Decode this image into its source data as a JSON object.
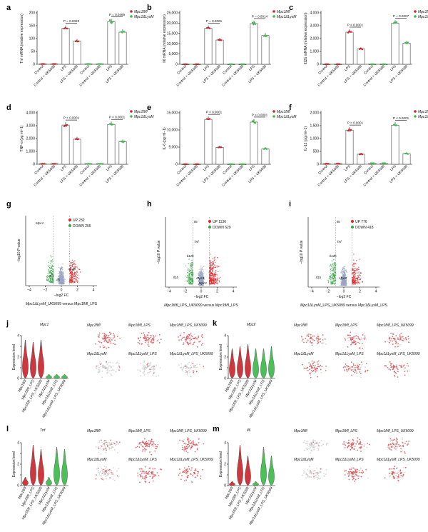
{
  "colors": {
    "fl": "#c8282d",
    "ko": "#3dbb4a",
    "gray": "#9aa0b4",
    "up": "#e0262b",
    "down": "#33a845"
  },
  "bar_groups": [
    "Control",
    "Control + UK5099",
    "LPS",
    "LPS + UK5099",
    "Control",
    "Control + UK5099",
    "LPS",
    "LPS + UK5099"
  ],
  "legend": {
    "fl": "Mpc1fl/fl",
    "ko": "Mpc1ΔLysM"
  },
  "chart_data": [
    {
      "panel": "a",
      "type": "bar",
      "ylabel": "Tnf mRNA (relative expression)",
      "yticks": [
        "0",
        "50",
        "100",
        "150",
        "200"
      ],
      "ylim": [
        0,
        200
      ],
      "series": [
        {
          "name": "Mpc1fl/fl",
          "values": [
            1,
            1,
            140,
            90
          ]
        },
        {
          "name": "Mpc1ΔLysM",
          "values": [
            1,
            1,
            165,
            125
          ]
        }
      ],
      "pvals": [
        "P = 0.0020",
        "P = 0.0465"
      ]
    },
    {
      "panel": "b",
      "type": "bar",
      "ylabel": "Il6 mRNA (relative expression)",
      "yticks": [
        "0",
        "5,000",
        "10,000",
        "15,000",
        "20,000",
        "25,000"
      ],
      "ylim": [
        0,
        25000
      ],
      "series": [
        {
          "name": "Mpc1fl/fl",
          "values": [
            10,
            10,
            17500,
            11800
          ]
        },
        {
          "name": "Mpc1ΔLysM",
          "values": [
            10,
            10,
            19800,
            14000
          ]
        }
      ],
      "pvals": [
        "P = 0.0001",
        "P = 0.0014"
      ]
    },
    {
      "panel": "c",
      "type": "bar",
      "ylabel": "Il12b mRNA (relative expression)",
      "yticks": [
        "0",
        "1,000",
        "2,000",
        "3,000",
        "4,000"
      ],
      "ylim": [
        0,
        4000
      ],
      "series": [
        {
          "name": "Mpc1fl/fl",
          "values": [
            5,
            5,
            2500,
            1200
          ]
        },
        {
          "name": "Mpc1ΔLysM",
          "values": [
            5,
            5,
            3200,
            1650
          ]
        }
      ],
      "pvals": [
        "P < 0.0001",
        "P = 0.0007"
      ]
    },
    {
      "panel": "d",
      "type": "bar",
      "ylabel": "TNF-α (pg ml−1)",
      "yticks": [
        "0",
        "1,000",
        "2,000",
        "3,000",
        "4,000"
      ],
      "ylim": [
        0,
        4000
      ],
      "series": [
        {
          "name": "Mpc1fl/fl",
          "values": [
            30,
            30,
            3050,
            1950
          ]
        },
        {
          "name": "Mpc1ΔLysM",
          "values": [
            30,
            30,
            3100,
            1750
          ]
        }
      ],
      "pvals": [
        "P < 0.0001",
        "P < 0.0001"
      ]
    },
    {
      "panel": "e",
      "type": "bar",
      "ylabel": "IL-6 (pg ml−1)",
      "yticks": [
        "0",
        "5,000",
        "10,000",
        "15,000"
      ],
      "ylim": [
        0,
        15000
      ],
      "series": [
        {
          "name": "Mpc1fl/fl",
          "values": [
            20,
            20,
            13100,
            4900
          ]
        },
        {
          "name": "Mpc1ΔLysM",
          "values": [
            20,
            20,
            12300,
            4500
          ]
        }
      ],
      "pvals": [
        "P < 0.0001",
        "P < 0.0001"
      ]
    },
    {
      "panel": "f",
      "type": "bar",
      "ylabel": "IL-12 (pg ml−1)",
      "yticks": [
        "0",
        "500",
        "1,000",
        "1,500",
        "2,000"
      ],
      "ylim": [
        0,
        2000
      ],
      "series": [
        {
          "name": "Mpc1fl/fl",
          "values": [
            20,
            20,
            1330,
            390
          ]
        },
        {
          "name": "Mpc1ΔLysM",
          "values": [
            40,
            40,
            1520,
            410
          ]
        }
      ],
      "pvals": [
        "P < 0.0001",
        "P < 0.0001"
      ]
    }
  ],
  "volcano": [
    {
      "panel": "g",
      "up": "UP 232",
      "down": "DOWN 255",
      "genes": [
        "Mpc1",
        "Il12b",
        "Tnf",
        "Il6"
      ],
      "caption_a": "Mpc1ΔLysM",
      "caption_b": "_UK5099 versus Mpc1fl/fl_LPS"
    },
    {
      "panel": "h",
      "up": "UP 1136",
      "down": "DOWN 629",
      "genes": [
        "Il6",
        "Tnf",
        "Il12b",
        "Il1b",
        "Mpc1",
        "Mpc2"
      ],
      "caption_a": "Mpc1fl/fl",
      "caption_b": "_LPS_UK5099 versus Mpc1fl/fl_LPS"
    },
    {
      "panel": "i",
      "up": "UP 776",
      "down": "DOWN 418",
      "genes": [
        "Il6",
        "Tnf",
        "Il12b",
        "Il1b",
        "Mpc2"
      ],
      "caption_a": "Mpc1ΔLysM",
      "caption_b": "_LPS_UK5099 versus Mpc1ΔLysM_LPS"
    }
  ],
  "volcano_axes": {
    "xlabel": "−log2 FC",
    "ylabel": "−log10 P value",
    "xticks": [
      "−4",
      "−2",
      "0",
      "2",
      "4"
    ]
  },
  "violin": [
    {
      "panel": "j",
      "gene": "Mpc1",
      "ymax": 4
    },
    {
      "panel": "k",
      "gene": "Mpc2",
      "ymax": 4
    },
    {
      "panel": "l",
      "gene": "Tnf",
      "ymax": 4
    },
    {
      "panel": "m",
      "gene": "Il6",
      "ymax": 4
    }
  ],
  "violin_ylabel": "Expression level",
  "violin_groups": [
    "Mpc1fl/fl",
    "Mpc1fl/fl_LPS",
    "Mpc1fl/fl_LPS_UK5099",
    "Mpc1ΔLysM",
    "Mpc1ΔLysM_LPS",
    "Mpc1ΔLysM_LPS_UK5099"
  ],
  "umap_labels": [
    "Mpc1fl/fl",
    "Mpc1fl/fl_LPS",
    "Mpc1fl/fl_LPS_UK5099",
    "Mpc1ΔLysM",
    "Mpc1ΔLysM_LPS",
    "Mpc1ΔLysM_LPS_UK5099"
  ]
}
